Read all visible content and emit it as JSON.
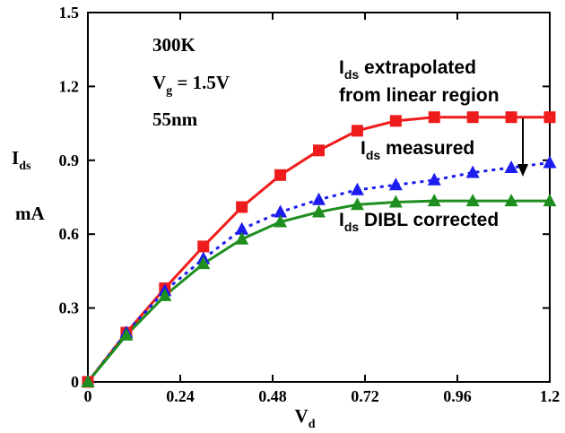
{
  "chart_data": {
    "type": "line",
    "xlabel": {
      "main": "V",
      "sub": "d"
    },
    "ylabel": {
      "main": "I",
      "sub": "ds",
      "unit": "mA"
    },
    "xlim": [
      0,
      1.2
    ],
    "ylim": [
      0,
      1.5
    ],
    "xticks": [
      "0",
      "0.24",
      "0.48",
      "0.72",
      "0.96",
      "1.2"
    ],
    "yticks": [
      "0",
      "0.3",
      "0.6",
      "0.9",
      "1.2",
      "1.5"
    ],
    "grid": false,
    "annotations": {
      "temp": "300K",
      "vg_main": "V",
      "vg_sub": "g",
      "vg_rest": " = 1.5V",
      "node": "55nm"
    },
    "series": [
      {
        "label_main": "I",
        "label_sub": "ds",
        "label_rest": " extrapolated",
        "label_line2": "from linear region",
        "color": "#ee1c1c",
        "marker": "square",
        "line_style": "solid",
        "x": [
          0,
          0.1,
          0.2,
          0.3,
          0.4,
          0.5,
          0.6,
          0.7,
          0.8,
          0.9,
          1.0,
          1.1,
          1.2
        ],
        "y": [
          0,
          0.2,
          0.38,
          0.55,
          0.71,
          0.84,
          0.94,
          1.02,
          1.06,
          1.075,
          1.075,
          1.075,
          1.075
        ]
      },
      {
        "label_main": "I",
        "label_sub": "ds",
        "label_rest": " measured",
        "color": "#1c1cee",
        "marker": "triangle",
        "line_style": "dotted",
        "x": [
          0,
          0.1,
          0.2,
          0.3,
          0.4,
          0.5,
          0.6,
          0.7,
          0.8,
          0.9,
          1.0,
          1.1,
          1.2
        ],
        "y": [
          0,
          0.2,
          0.37,
          0.5,
          0.62,
          0.69,
          0.74,
          0.78,
          0.8,
          0.82,
          0.85,
          0.87,
          0.89
        ]
      },
      {
        "label_main": "I",
        "label_sub": "ds",
        "label_rest": " DIBL corrected",
        "color": "#1e8f1e",
        "marker": "triangle",
        "line_style": "solid",
        "x": [
          0,
          0.1,
          0.2,
          0.3,
          0.4,
          0.5,
          0.6,
          0.7,
          0.8,
          0.9,
          1.0,
          1.1,
          1.2
        ],
        "y": [
          0,
          0.19,
          0.35,
          0.48,
          0.58,
          0.65,
          0.69,
          0.72,
          0.73,
          0.735,
          0.735,
          0.735,
          0.735
        ]
      }
    ]
  }
}
